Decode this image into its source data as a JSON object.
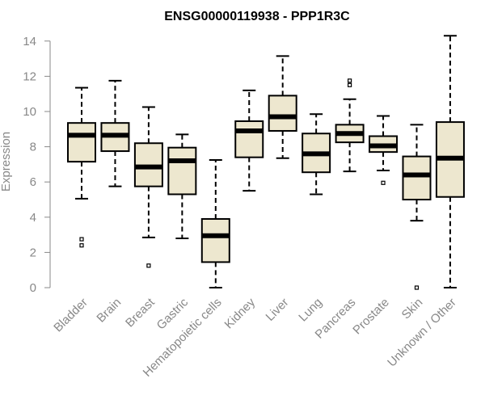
{
  "chart_data": {
    "type": "boxplot",
    "title": "ENSG00000119938 - PPP1R3C",
    "xlabel": "",
    "ylabel": "Expression",
    "ylim": [
      0,
      14
    ],
    "yticks": [
      0,
      2,
      4,
      6,
      8,
      10,
      12,
      14
    ],
    "grid": false,
    "box_fill": "#ede7cf",
    "axis_color": "#888888",
    "categories": [
      "Bladder",
      "Brain",
      "Breast",
      "Gastric",
      "Hematopoietic cells",
      "Kidney",
      "Liver",
      "Lung",
      "Pancreas",
      "Prostate",
      "Skin",
      "Unknown / Other"
    ],
    "boxes": [
      {
        "category": "Bladder",
        "whisker_low": 5.05,
        "q1": 7.15,
        "median": 8.65,
        "q3": 9.35,
        "whisker_high": 11.35,
        "outliers": [
          2.75,
          2.4
        ]
      },
      {
        "category": "Brain",
        "whisker_low": 5.75,
        "q1": 7.75,
        "median": 8.65,
        "q3": 9.35,
        "whisker_high": 11.75,
        "outliers": []
      },
      {
        "category": "Breast",
        "whisker_low": 2.85,
        "q1": 5.75,
        "median": 6.85,
        "q3": 8.2,
        "whisker_high": 10.25,
        "outliers": [
          1.25
        ]
      },
      {
        "category": "Gastric",
        "whisker_low": 2.8,
        "q1": 5.3,
        "median": 7.2,
        "q3": 7.95,
        "whisker_high": 8.7,
        "outliers": []
      },
      {
        "category": "Hematopoietic cells",
        "whisker_low": 0.0,
        "q1": 1.45,
        "median": 2.95,
        "q3": 3.9,
        "whisker_high": 7.25,
        "outliers": []
      },
      {
        "category": "Kidney",
        "whisker_low": 5.5,
        "q1": 7.4,
        "median": 8.9,
        "q3": 9.45,
        "whisker_high": 11.2,
        "outliers": []
      },
      {
        "category": "Liver",
        "whisker_low": 7.35,
        "q1": 8.9,
        "median": 9.7,
        "q3": 10.9,
        "whisker_high": 13.15,
        "outliers": []
      },
      {
        "category": "Lung",
        "whisker_low": 5.3,
        "q1": 6.55,
        "median": 7.6,
        "q3": 8.75,
        "whisker_high": 9.85,
        "outliers": []
      },
      {
        "category": "Pancreas",
        "whisker_low": 6.6,
        "q1": 8.25,
        "median": 8.75,
        "q3": 9.25,
        "whisker_high": 10.7,
        "outliers": [
          11.75,
          11.5
        ]
      },
      {
        "category": "Prostate",
        "whisker_low": 6.65,
        "q1": 7.7,
        "median": 8.05,
        "q3": 8.6,
        "whisker_high": 9.75,
        "outliers": [
          5.95
        ]
      },
      {
        "category": "Skin",
        "whisker_low": 3.8,
        "q1": 5.0,
        "median": 6.4,
        "q3": 7.45,
        "whisker_high": 9.25,
        "outliers": [
          0.0
        ]
      },
      {
        "category": "Unknown / Other",
        "whisker_low": 0.0,
        "q1": 5.15,
        "median": 7.35,
        "q3": 9.4,
        "whisker_high": 14.3,
        "outliers": []
      }
    ]
  }
}
